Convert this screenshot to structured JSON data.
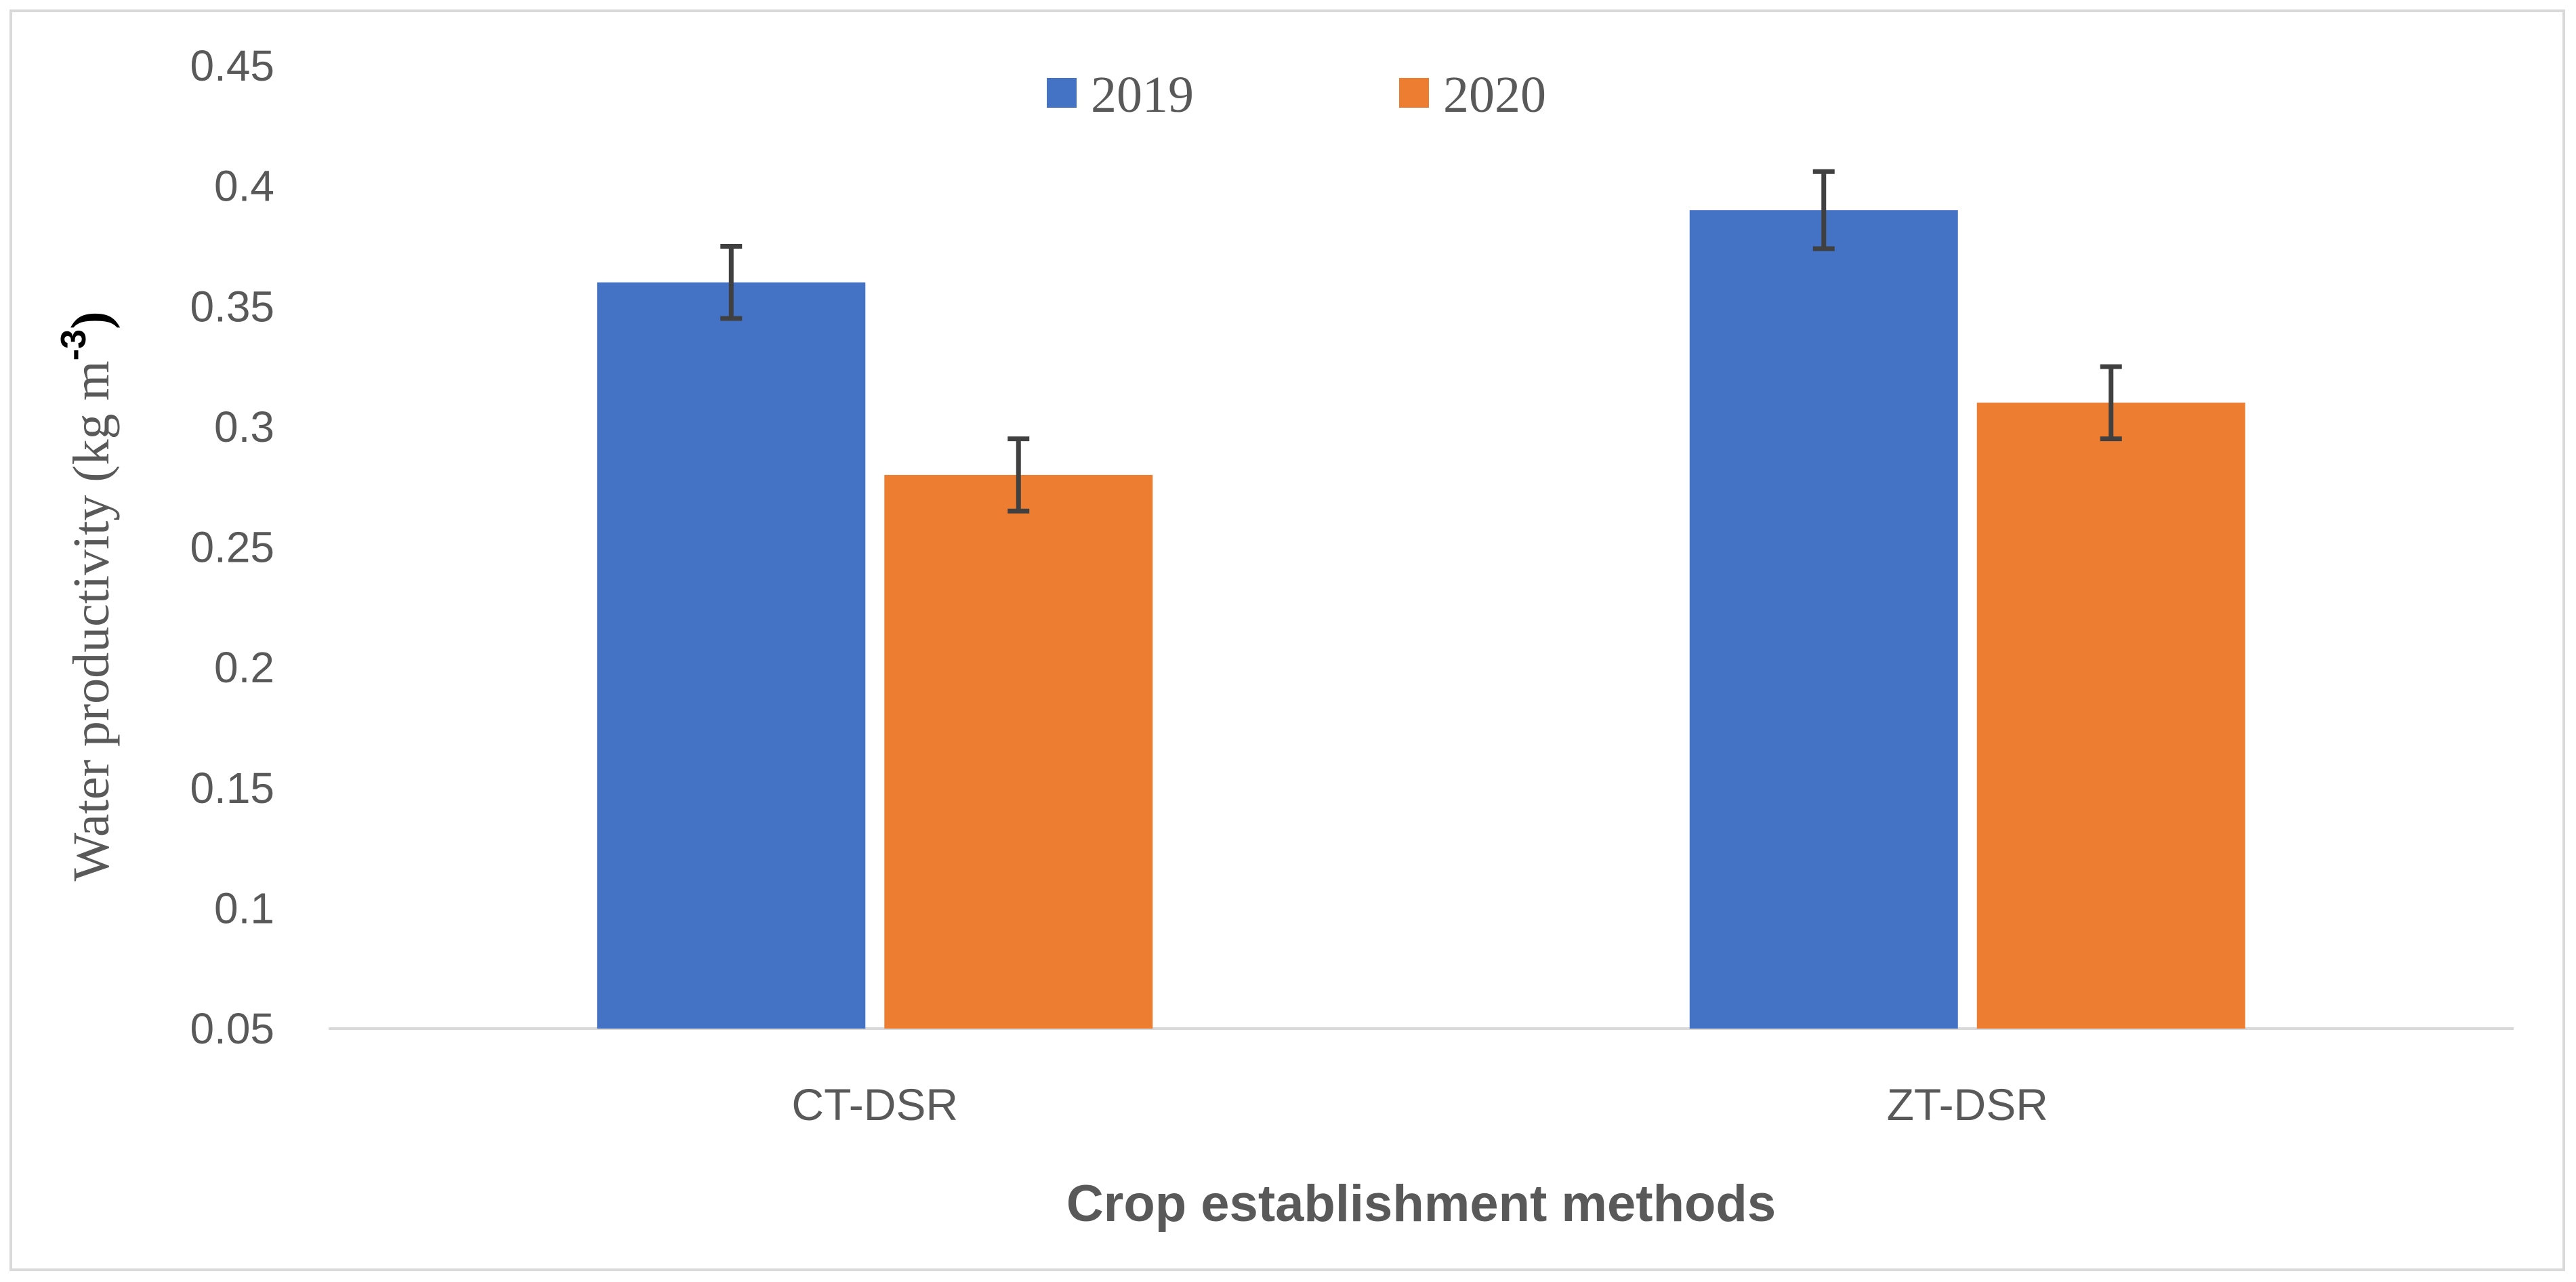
{
  "chart_data": {
    "type": "bar",
    "title": "",
    "xlabel": "Crop establishment methods",
    "ylabel": {
      "main": "Water productivity  (kg m",
      "superscript": "-3",
      "closing": ")"
    },
    "categories": [
      "CT-DSR",
      "ZT-DSR"
    ],
    "series": [
      {
        "name": "2019",
        "color": "#4472C4",
        "values": [
          0.36,
          0.39
        ],
        "errors": [
          0.015,
          0.016
        ]
      },
      {
        "name": "2020",
        "color": "#ED7D31",
        "values": [
          0.28,
          0.31
        ],
        "errors": [
          0.015,
          0.015
        ]
      }
    ],
    "ylim": [
      0.05,
      0.45
    ],
    "yticks": [
      {
        "value": 0.05,
        "label": "0.05"
      },
      {
        "value": 0.1,
        "label": "0.1"
      },
      {
        "value": 0.15,
        "label": "0.15"
      },
      {
        "value": 0.2,
        "label": "0.2"
      },
      {
        "value": 0.25,
        "label": "0.25"
      },
      {
        "value": 0.3,
        "label": "0.3"
      },
      {
        "value": 0.35,
        "label": "0.35"
      },
      {
        "value": 0.4,
        "label": "0.4"
      },
      {
        "value": 0.45,
        "label": "0.45"
      }
    ],
    "grid": false,
    "legend_position": "top-center",
    "error_bar_color": "#404040",
    "axis_line_color": "#d9d9d9"
  }
}
